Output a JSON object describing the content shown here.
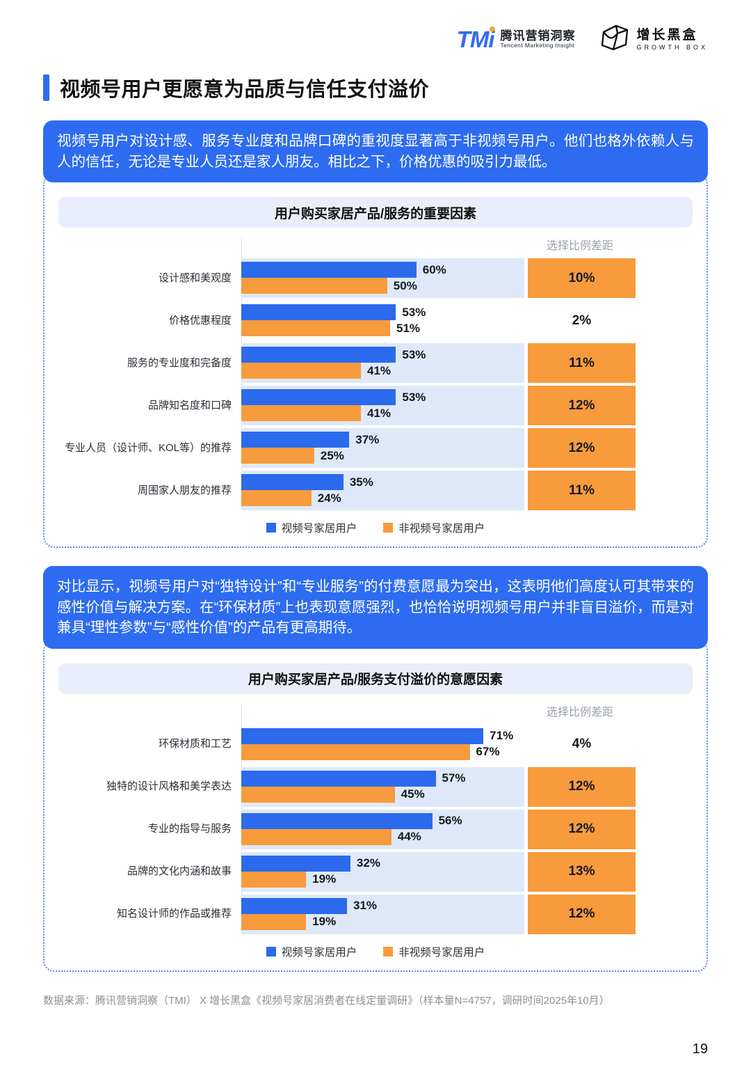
{
  "header": {
    "tmi": {
      "mark": "TMi",
      "cn": "腾讯营销洞察",
      "en": "Tencent Marketing Insight"
    },
    "growth": {
      "cn": "增长黑盒",
      "en": "GROWTH BOX"
    }
  },
  "title": "视频号用户更愿意为品质与信任支付溢价",
  "colors": {
    "primary_blue": "#2b6aec",
    "callout_blue": "#2d6bf0",
    "orange": "#f89b3c",
    "row_band": "#dfe8f9",
    "chart_header_bg": "#e9eefa",
    "dotted_border": "#5d83f2"
  },
  "sections": [
    {
      "callout": "视频号用户对设计感、服务专业度和品牌口碑的重视度显著高于非视频号用户。他们也格外依赖人与人的信任，无论是专业人员还是家人朋友。相比之下，价格优惠的吸引力最低。"
    },
    {
      "callout": "对比显示，视频号用户对“独特设计”和“专业服务”的付费意愿最为突出，这表明他们高度认可其带来的感性价值与解决方案。在“环保材质”上也表现意愿强烈，也恰恰说明视频号用户并非盲目溢价，而是对兼具“理性参数”与“感性价值”的产品有更高期待。"
    }
  ],
  "chart_data": [
    {
      "type": "bar",
      "title": "用户购买家居产品/服务的重要因素",
      "gap_column_label": "选择比例差距",
      "unit": "%",
      "xlim": [
        0,
        97
      ],
      "grid": false,
      "legend_position": "bottom",
      "categories": [
        "设计感和美观度",
        "价格优惠程度",
        "服务的专业度和完备度",
        "品牌知名度和口碑",
        "专业人员（设计师、KOL等）的推荐",
        "周围家人朋友的推荐"
      ],
      "series": [
        {
          "name": "视频号家居用户",
          "color": "#2b6aec",
          "values": [
            60,
            53,
            53,
            53,
            37,
            35
          ]
        },
        {
          "name": "非视频号家居用户",
          "color": "#f89b3c",
          "values": [
            50,
            51,
            41,
            41,
            25,
            24
          ]
        }
      ],
      "gap_values": [
        10,
        2,
        11,
        12,
        12,
        11
      ],
      "gap_highlight": [
        true,
        false,
        true,
        true,
        true,
        true
      ]
    },
    {
      "type": "bar",
      "title": "用户购买家居产品/服务支付溢价的意愿因素",
      "gap_column_label": "选择比例差距",
      "unit": "%",
      "xlim": [
        0,
        83
      ],
      "grid": false,
      "legend_position": "bottom",
      "categories": [
        "环保材质和工艺",
        "独特的设计风格和美学表达",
        "专业的指导与服务",
        "品牌的文化内涵和故事",
        "知名设计师的作品或推荐"
      ],
      "series": [
        {
          "name": "视频号家居用户",
          "color": "#2b6aec",
          "values": [
            71,
            57,
            56,
            32,
            31
          ]
        },
        {
          "name": "非视频号家居用户",
          "color": "#f89b3c",
          "values": [
            67,
            45,
            44,
            19,
            19
          ]
        }
      ],
      "gap_values": [
        4,
        12,
        12,
        13,
        12
      ],
      "gap_highlight": [
        false,
        true,
        true,
        true,
        true
      ]
    }
  ],
  "footer": {
    "source": "数据来源：腾讯营销洞察（TMI） X 增长黑盒《视频号家居消费者在线定量调研》（样本量N=4757，调研时间2025年10月）"
  },
  "page": {
    "number": "19"
  }
}
